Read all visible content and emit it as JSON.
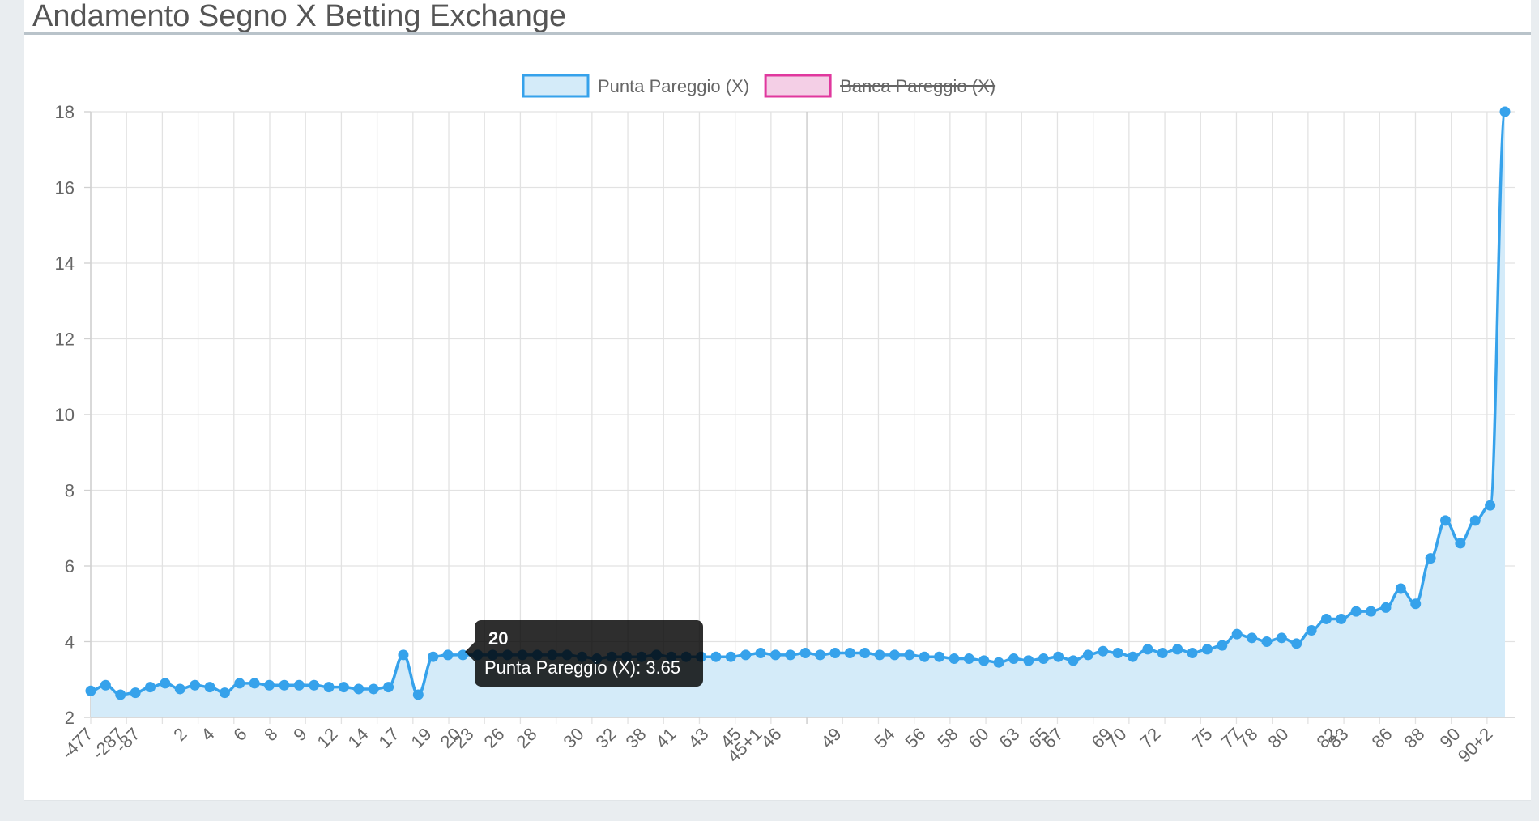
{
  "page": {
    "title": "Andamento Segno X Betting Exchange"
  },
  "tooltip": {
    "title": "20",
    "body": "Punta Pareggio (X): 3.65"
  },
  "chart_data": {
    "type": "line",
    "legend": [
      {
        "label": "Punta Pareggio (X)",
        "border_color": "#36a2eb",
        "fill_color": "#d4ebf9",
        "hidden": false
      },
      {
        "label": "Banca Pareggio (X)",
        "border_color": "#e0389e",
        "fill_color": "#f4cfe6",
        "hidden": true
      }
    ],
    "legend_position": "top",
    "grid": true,
    "ylim": [
      2,
      18
    ],
    "yticks": [
      2,
      4,
      6,
      8,
      10,
      12,
      14,
      16,
      18
    ],
    "x_tick_labels": [
      "-477",
      "-287",
      "-87",
      "2",
      "4",
      "6",
      "8",
      "9",
      "12",
      "14",
      "17",
      "19",
      "20",
      "23",
      "26",
      "28",
      "30",
      "32",
      "38",
      "41",
      "43",
      "45",
      "45+1",
      "46",
      "49",
      "54",
      "56",
      "58",
      "60",
      "63",
      "65",
      "67",
      "69",
      "70",
      "72",
      "75",
      "77",
      "78",
      "80",
      "82",
      "83",
      "86",
      "88",
      "90",
      "90+2"
    ],
    "series": [
      {
        "name": "Punta Pareggio (X)",
        "values": [
          2.7,
          2.85,
          2.6,
          2.65,
          2.8,
          2.9,
          2.75,
          2.85,
          2.8,
          2.65,
          2.9,
          2.9,
          2.85,
          2.85,
          2.85,
          2.85,
          2.8,
          2.8,
          2.75,
          2.75,
          2.8,
          3.65,
          2.6,
          3.6,
          3.65,
          3.65,
          3.65,
          3.65,
          3.65,
          3.65,
          3.65,
          3.65,
          3.65,
          3.6,
          3.55,
          3.6,
          3.6,
          3.6,
          3.65,
          3.6,
          3.6,
          3.6,
          3.6,
          3.6,
          3.65,
          3.7,
          3.65,
          3.65,
          3.7,
          3.65,
          3.7,
          3.7,
          3.7,
          3.65,
          3.65,
          3.65,
          3.6,
          3.6,
          3.55,
          3.55,
          3.5,
          3.45,
          3.55,
          3.5,
          3.55,
          3.6,
          3.5,
          3.65,
          3.75,
          3.7,
          3.6,
          3.8,
          3.7,
          3.8,
          3.7,
          3.8,
          3.9,
          4.2,
          4.1,
          4.0,
          4.1,
          3.95,
          4.3,
          4.6,
          4.6,
          4.8,
          4.8,
          4.9,
          5.4,
          5.0,
          6.2,
          7.2,
          6.6,
          7.2,
          7.6,
          18.0
        ]
      }
    ]
  }
}
